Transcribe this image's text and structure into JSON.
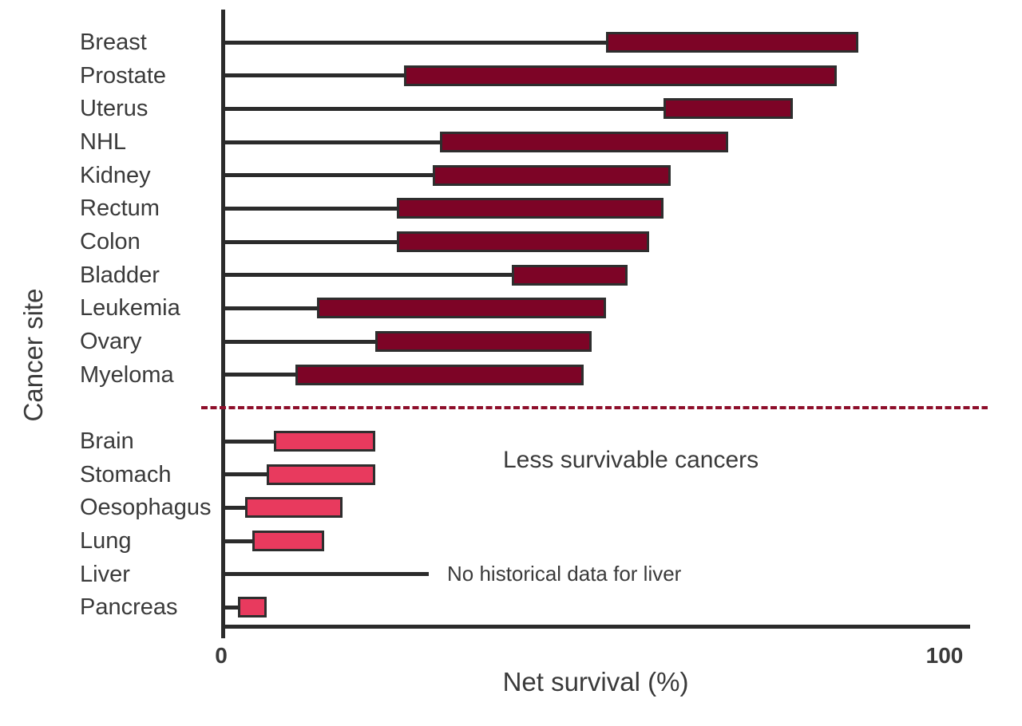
{
  "chart_data": {
    "type": "bar",
    "subtype": "horizontal-range-bars",
    "title": "",
    "xlabel": "Net survival (%)",
    "ylabel": "Cancer site",
    "xlim": [
      0,
      100
    ],
    "x_ticks": [
      0,
      100
    ],
    "x_tick_labels": [
      "0",
      "100"
    ],
    "grid": false,
    "legend": false,
    "categories": [
      "Breast",
      "Prostate",
      "Uterus",
      "NHL",
      "Kidney",
      "Rectum",
      "Colon",
      "Bladder",
      "Leukemia",
      "Ovary",
      "Myeloma",
      "Brain",
      "Stomach",
      "Oesophagus",
      "Lung",
      "Liver",
      "Pancreas"
    ],
    "rows": [
      {
        "label": "Breast",
        "group": "more-survivable",
        "from": 53,
        "to": 88
      },
      {
        "label": "Prostate",
        "group": "more-survivable",
        "from": 25,
        "to": 85
      },
      {
        "label": "Uterus",
        "group": "more-survivable",
        "from": 61,
        "to": 79
      },
      {
        "label": "NHL",
        "group": "more-survivable",
        "from": 30,
        "to": 70
      },
      {
        "label": "Kidney",
        "group": "more-survivable",
        "from": 29,
        "to": 62
      },
      {
        "label": "Rectum",
        "group": "more-survivable",
        "from": 24,
        "to": 61
      },
      {
        "label": "Colon",
        "group": "more-survivable",
        "from": 24,
        "to": 59
      },
      {
        "label": "Bladder",
        "group": "more-survivable",
        "from": 40,
        "to": 56
      },
      {
        "label": "Leukemia",
        "group": "more-survivable",
        "from": 13,
        "to": 53
      },
      {
        "label": "Ovary",
        "group": "more-survivable",
        "from": 21,
        "to": 51
      },
      {
        "label": "Myeloma",
        "group": "more-survivable",
        "from": 10,
        "to": 50
      },
      {
        "label": "Brain",
        "group": "less-survivable",
        "from": 7,
        "to": 21
      },
      {
        "label": "Stomach",
        "group": "less-survivable",
        "from": 6,
        "to": 21
      },
      {
        "label": "Oesophagus",
        "group": "less-survivable",
        "from": 3,
        "to": 16.5
      },
      {
        "label": "Lung",
        "group": "less-survivable",
        "from": 4,
        "to": 14
      },
      {
        "label": "Liver",
        "group": "less-survivable",
        "from": null,
        "to": null,
        "note": "No historical data for liver",
        "leader_to": 28.5
      },
      {
        "label": "Pancreas",
        "group": "less-survivable",
        "from": 2,
        "to": 6
      }
    ],
    "annotations": [
      {
        "text": "Less survivable cancers"
      },
      {
        "text": "No historical data for liver"
      }
    ]
  },
  "colors": {
    "more_survivable_fill": "#7d0426",
    "less_survivable_fill": "#e83a5e",
    "separator_line": "#8e0f2b",
    "axis_line": "#2b2b2b",
    "bar_border": "#2e2e2e",
    "text": "#3a3a3a"
  }
}
